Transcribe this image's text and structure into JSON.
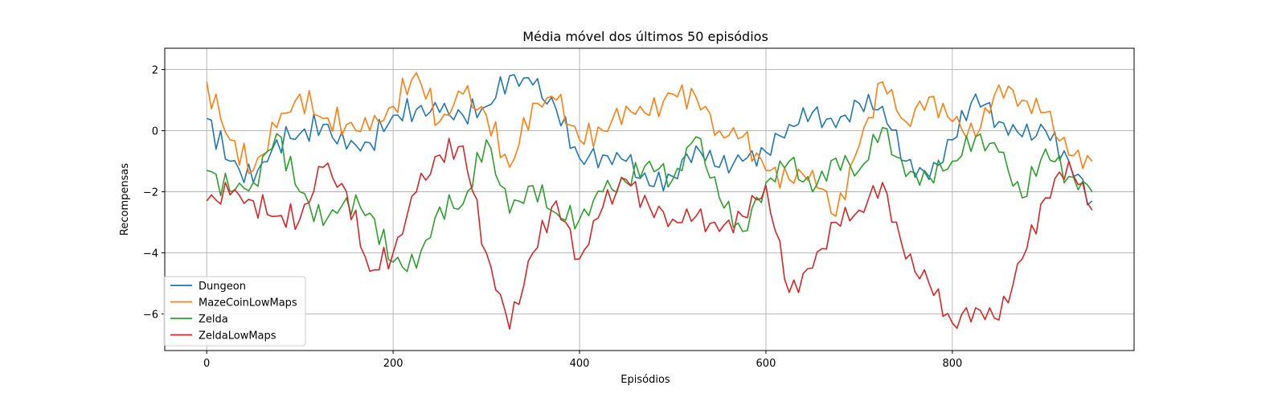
{
  "chart_data": {
    "type": "line",
    "title": "Média móvel dos últimos 50 episódios",
    "xlabel": "Episódios",
    "ylabel": "Recompensas",
    "xlim": [
      -45,
      995
    ],
    "ylim": [
      -7.2,
      2.7
    ],
    "xticks": [
      0,
      200,
      400,
      600,
      800
    ],
    "yticks": [
      -6,
      -4,
      -2,
      0,
      2
    ],
    "grid": true,
    "legend_position": "lower-left",
    "x": [
      0,
      25,
      50,
      75,
      100,
      125,
      150,
      175,
      200,
      225,
      250,
      275,
      300,
      325,
      350,
      375,
      400,
      425,
      450,
      475,
      500,
      525,
      550,
      575,
      600,
      625,
      650,
      675,
      700,
      725,
      750,
      775,
      800,
      825,
      850,
      875,
      900,
      925,
      950
    ],
    "series": [
      {
        "name": "Dungeon",
        "color": "#1f77b4",
        "values": [
          0.4,
          -1.0,
          -1.7,
          -0.3,
          -0.1,
          0.2,
          -0.6,
          -0.4,
          0.5,
          0.7,
          0.6,
          0.5,
          0.8,
          1.8,
          1.5,
          0.7,
          -0.9,
          -0.8,
          -1.0,
          -1.8,
          -1.5,
          -0.5,
          -1.2,
          -1.0,
          -0.7,
          0.2,
          0.6,
          0.1,
          0.9,
          0.8,
          -1.0,
          -1.6,
          -0.3,
          1.2,
          0.3,
          -0.2,
          0.0,
          -1.0,
          -2.3
        ]
      },
      {
        "name": "MazeCoinLowMaps",
        "color": "#ff7f0e",
        "values": [
          1.6,
          -0.3,
          -1.3,
          0.1,
          1.2,
          0.4,
          0.2,
          0.0,
          0.8,
          1.9,
          0.3,
          1.2,
          0.5,
          -1.2,
          0.9,
          1.0,
          -0.3,
          0.0,
          0.8,
          0.5,
          1.2,
          1.1,
          0.0,
          -0.2,
          -1.3,
          -1.6,
          -1.3,
          -2.8,
          -0.5,
          1.6,
          0.3,
          1.1,
          0.3,
          -0.2,
          1.5,
          1.0,
          0.6,
          -0.8,
          -1.0
        ]
      },
      {
        "name": "Zelda",
        "color": "#2ca02c",
        "values": [
          -1.3,
          -2.0,
          -1.7,
          -0.1,
          -2.0,
          -3.1,
          -2.2,
          -2.7,
          -4.3,
          -4.5,
          -2.5,
          -2.4,
          -0.3,
          -2.7,
          -1.8,
          -2.7,
          -2.9,
          -2.0,
          -1.7,
          -1.0,
          -1.6,
          -0.2,
          -2.2,
          -3.3,
          -1.7,
          -1.0,
          -2.0,
          -0.9,
          -1.3,
          0.1,
          -1.5,
          -1.5,
          -1.0,
          -0.2,
          -0.7,
          -2.2,
          -0.6,
          -1.5,
          -2.0
        ]
      },
      {
        "name": "ZeldaLowMaps",
        "color": "#d62728",
        "values": [
          -2.3,
          -2.1,
          -2.3,
          -2.8,
          -2.9,
          -1.2,
          -2.0,
          -4.6,
          -4.0,
          -2.0,
          -0.8,
          -0.5,
          -4.0,
          -6.5,
          -4.0,
          -2.3,
          -4.2,
          -2.5,
          -1.6,
          -2.5,
          -2.9,
          -2.8,
          -3.3,
          -2.8,
          -1.8,
          -5.3,
          -4.5,
          -3.0,
          -2.6,
          -1.7,
          -4.2,
          -5.0,
          -6.3,
          -5.8,
          -6.2,
          -4.2,
          -2.2,
          -1.0,
          -2.6
        ]
      }
    ]
  }
}
